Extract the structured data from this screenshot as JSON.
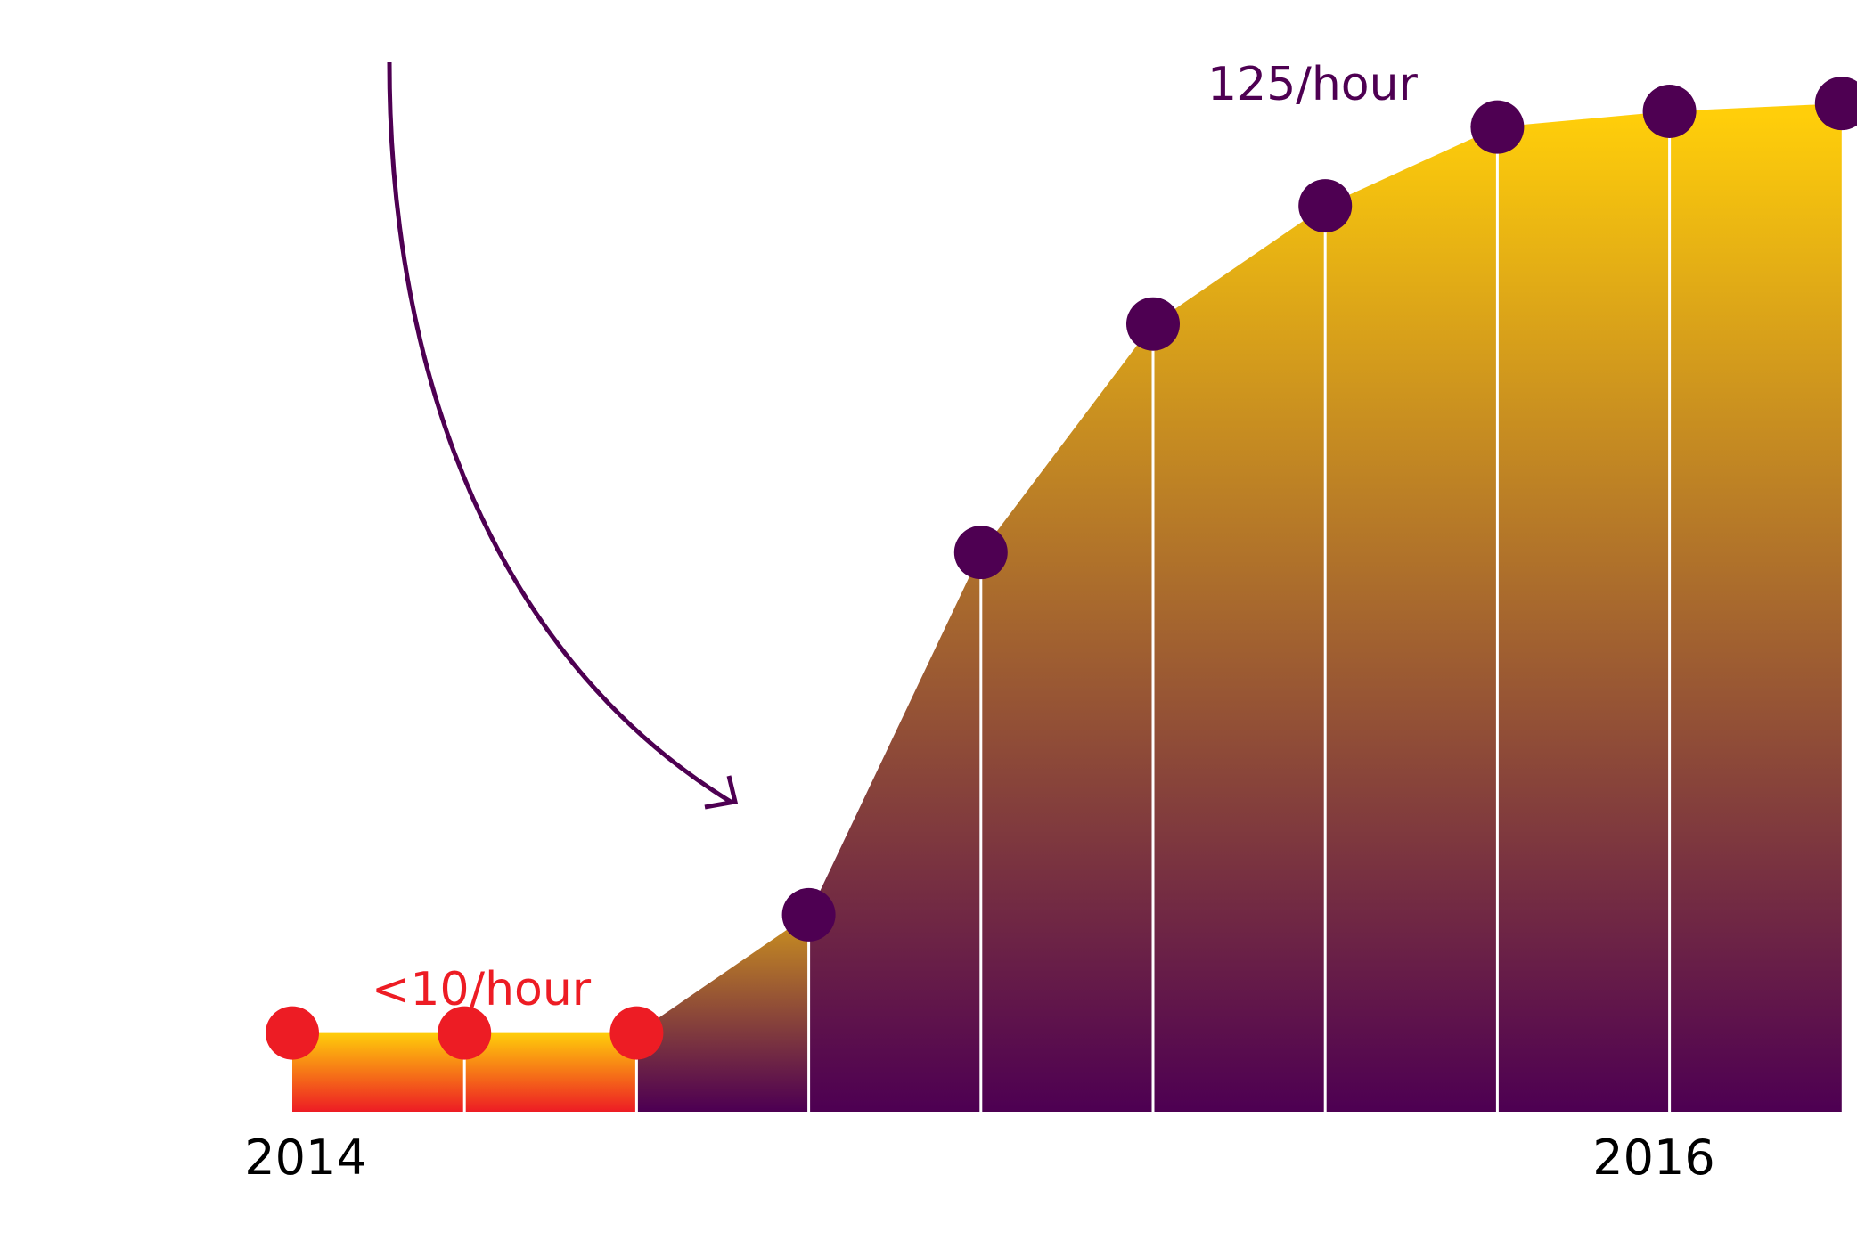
{
  "chart_data": {
    "type": "area",
    "x_start_label": "2014",
    "x_end_label": "2016",
    "series": [
      {
        "values": [
          10,
          10,
          10
        ]
      },
      {
        "values": [
          10,
          25,
          71,
          100,
          115,
          125,
          127,
          128
        ]
      }
    ],
    "annotations": {
      "low_rate": "<10/hour",
      "high_rate": "125/hour"
    },
    "ylim": [
      0,
      140
    ],
    "grid": false,
    "colors": {
      "low_series": "#ed1c24",
      "high_series": "#4e0052",
      "fill_top": "#ffce0a",
      "fill_bottom_low": "#ed1c24",
      "fill_bottom_high": "#4e0052",
      "arrow": "#4e0052"
    }
  }
}
